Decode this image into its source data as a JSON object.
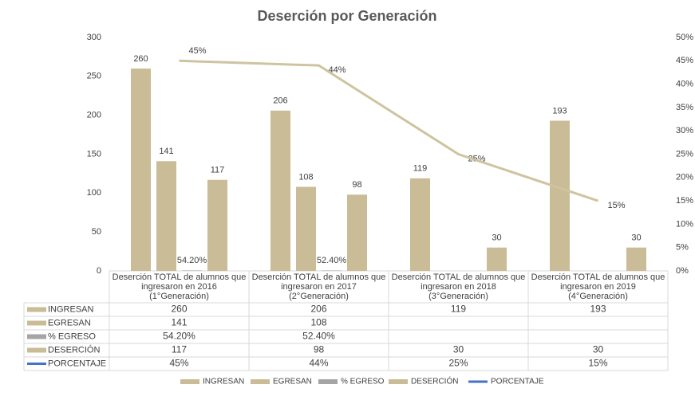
{
  "chart_data": {
    "type": "bar",
    "title": "Deserción por Generación",
    "categories": [
      "Deserción TOTAL de alumnos que ingresaron en 2016 (1°Generación)",
      "Deserción TOTAL de alumnos que ingresaron en 2017 (2°Generación)",
      "Deserción TOTAL de alumnos que ingresaron en 2018 (3°Generación)",
      "Deserción TOTAL de alumnos que ingresaron en 2019 (4°Generación)"
    ],
    "series": [
      {
        "name": "INGRESAN",
        "type": "bar",
        "color": "#c9bc96",
        "values": [
          260,
          206,
          119,
          193
        ]
      },
      {
        "name": "EGRESAN",
        "type": "bar",
        "color": "#c9bc96",
        "values": [
          141,
          108,
          null,
          null
        ]
      },
      {
        "name": "% EGRESO",
        "type": "bar",
        "color": "#a5a5a5",
        "values": [
          0.542,
          0.524,
          null,
          null
        ],
        "value_labels": [
          "54.20%",
          "52.40%",
          null,
          null
        ]
      },
      {
        "name": "DESERCIÓN",
        "type": "bar",
        "color": "#c9bc96",
        "values": [
          117,
          98,
          30,
          30
        ]
      },
      {
        "name": "PORCENTAJE",
        "type": "line",
        "axis": "y2",
        "color": "#cfc4a0",
        "legend_color": "#4472c4",
        "values": [
          45,
          44,
          25,
          15
        ],
        "value_labels": [
          "45%",
          "44%",
          "25%",
          "15%"
        ]
      }
    ],
    "ylim": [
      0,
      300
    ],
    "yticks": [
      0,
      50,
      100,
      150,
      200,
      250,
      300
    ],
    "y2lim": [
      0,
      50
    ],
    "y2ticks": [
      {
        "value": 0,
        "label": "0%"
      },
      {
        "value": 5,
        "label": "5%"
      },
      {
        "value": 10,
        "label": "10%"
      },
      {
        "value": 15,
        "label": "15%"
      },
      {
        "value": 20,
        "label": "20%"
      },
      {
        "value": 25,
        "label": "25%"
      },
      {
        "value": 30,
        "label": "30%"
      },
      {
        "value": 35,
        "label": "35%"
      },
      {
        "value": 40,
        "label": "40%"
      },
      {
        "value": 45,
        "label": "45%"
      },
      {
        "value": 50,
        "label": "50%"
      }
    ]
  }
}
